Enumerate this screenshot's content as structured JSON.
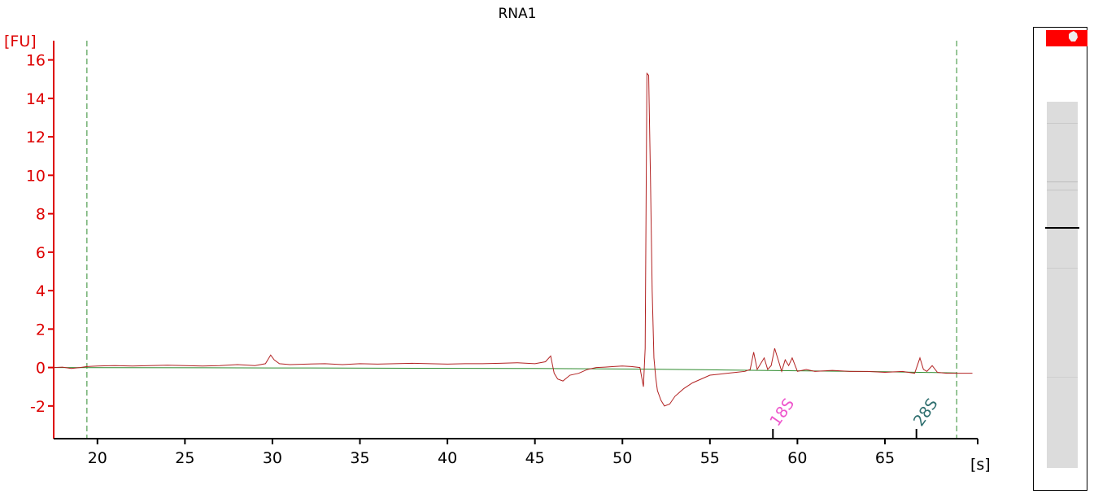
{
  "chart_data": {
    "type": "line",
    "title": "RNA1",
    "ylabel": "[FU]",
    "xlabel": "[s]",
    "xlim": [
      17.5,
      70.3
    ],
    "ylim": [
      -3.7,
      17.0
    ],
    "xticks": [
      20,
      25,
      30,
      35,
      40,
      45,
      50,
      55,
      60,
      65
    ],
    "yticks": [
      -2,
      0,
      2,
      4,
      6,
      8,
      10,
      12,
      14,
      16
    ],
    "grid": false,
    "marker_lines_x": [
      19.4,
      69.1
    ],
    "colors": {
      "trace": "#b22222",
      "baseline": "#2e8b2e",
      "axis_y": "#dd0000",
      "axis_x": "#000000",
      "marker_lines": "#2e8b2e",
      "peak_18s": "#ee55cc",
      "peak_28s": "#2f6f6f"
    },
    "series": [
      {
        "x": [
          17.5,
          18.0,
          18.5,
          19.0,
          19.4,
          20.0,
          21.0,
          22.0,
          23.0,
          24.0,
          25.0,
          26.0,
          27.0,
          28.0,
          29.0,
          29.6,
          29.9,
          30.1,
          30.4,
          31.0,
          32.0,
          33.0,
          34.0,
          35.0,
          36.0,
          37.0,
          38.0,
          39.0,
          40.0,
          41.0,
          42.0,
          43.0,
          44.0,
          45.0,
          45.6,
          45.9,
          46.1,
          46.3,
          46.6,
          47.0,
          47.5,
          48.0,
          48.5,
          49.0,
          49.5,
          50.0,
          50.5,
          51.0,
          51.2,
          51.3,
          51.4,
          51.5,
          51.6,
          51.7,
          51.8,
          51.9,
          52.0,
          52.2,
          52.4,
          52.7,
          53.0,
          53.5,
          54.0,
          54.5,
          55.0,
          55.5,
          56.0,
          56.5,
          57.0,
          57.3,
          57.5,
          57.7,
          57.9,
          58.1,
          58.3,
          58.5,
          58.7,
          58.9,
          59.1,
          59.3,
          59.5,
          59.7,
          60.0,
          60.5,
          61.0,
          62.0,
          63.0,
          64.0,
          65.0,
          66.0,
          66.7,
          67.0,
          67.2,
          67.4,
          67.7,
          68.0,
          68.5,
          69.1,
          70.0
        ],
        "y": [
          0.0,
          0.02,
          -0.05,
          0.0,
          0.05,
          0.08,
          0.1,
          0.08,
          0.1,
          0.12,
          0.1,
          0.08,
          0.1,
          0.15,
          0.1,
          0.2,
          0.65,
          0.4,
          0.2,
          0.15,
          0.18,
          0.2,
          0.15,
          0.2,
          0.18,
          0.2,
          0.22,
          0.2,
          0.18,
          0.2,
          0.2,
          0.22,
          0.25,
          0.2,
          0.3,
          0.6,
          -0.3,
          -0.6,
          -0.7,
          -0.4,
          -0.3,
          -0.1,
          0.0,
          0.02,
          0.05,
          0.08,
          0.05,
          0.0,
          -1.0,
          1.0,
          15.3,
          15.2,
          10.0,
          4.0,
          0.5,
          -0.5,
          -1.2,
          -1.7,
          -2.0,
          -1.9,
          -1.5,
          -1.1,
          -0.8,
          -0.6,
          -0.4,
          -0.35,
          -0.3,
          -0.25,
          -0.2,
          -0.1,
          0.8,
          -0.1,
          0.2,
          0.5,
          -0.1,
          0.1,
          1.0,
          0.4,
          -0.2,
          0.4,
          0.1,
          0.5,
          -0.2,
          -0.1,
          -0.2,
          -0.15,
          -0.2,
          -0.2,
          -0.25,
          -0.2,
          -0.3,
          0.5,
          -0.1,
          -0.2,
          0.1,
          -0.25,
          -0.3,
          -0.3,
          -0.3
        ]
      },
      {
        "x": [
          17.5,
          30.0,
          45.0,
          51.0,
          55.0,
          60.0,
          65.0,
          69.1
        ],
        "y": [
          0.0,
          -0.02,
          -0.05,
          -0.08,
          -0.12,
          -0.17,
          -0.22,
          -0.28
        ]
      }
    ],
    "peak_markers": [
      {
        "label": "18S",
        "x": 58.6
      },
      {
        "label": "28S",
        "x": 66.8
      }
    ]
  }
}
